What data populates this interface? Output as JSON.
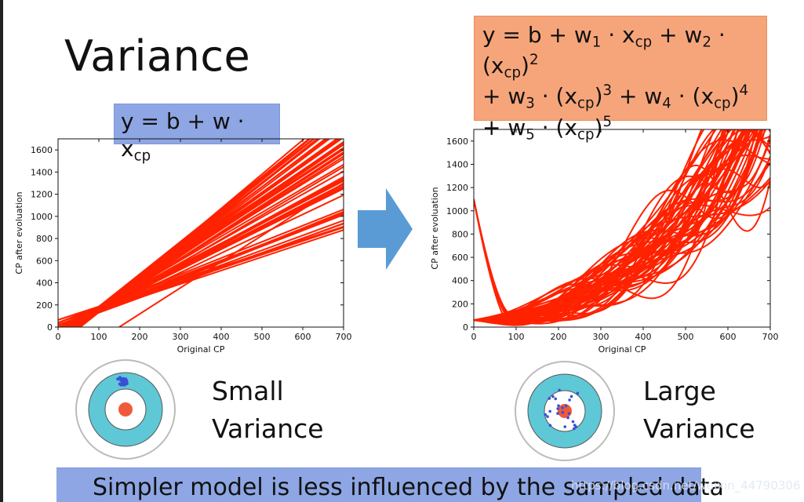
{
  "slide": {
    "title": "Variance",
    "bottom_text": "Simpler model is less influenced by the sampled data",
    "watermark": "https://blog.csdn.net/weixin_44790306"
  },
  "formula_simple": {
    "main": "y = b + w · x",
    "sub": "cp"
  },
  "formula_complex": {
    "line1_a": "y = b + w",
    "line1_sub1": "1",
    "line1_b": " · x",
    "line1_sub2": "cp",
    "line1_c": " + w",
    "line1_sub3": "2",
    "line1_d": " · (x",
    "line1_sub4": "cp",
    "line1_e": ")",
    "line1_sup": "2",
    "line2_a": "+ w",
    "line2_sub1": "3",
    "line2_b": " · (x",
    "line2_sub2": "cp",
    "line2_c": ")",
    "line2_sup1": "3",
    "line2_d": " + w",
    "line2_sub3": "4",
    "line2_e": " · (x",
    "line2_sub4": "cp",
    "line2_f": ")",
    "line2_sup2": "4",
    "line3_a": "+ w",
    "line3_sub1": "5",
    "line3_b": " · (x",
    "line3_sub2": "cp",
    "line3_c": ")",
    "line3_sup": "5"
  },
  "labels": {
    "small": "Small",
    "large": "Large",
    "variance": "Variance"
  },
  "colors": {
    "curve": "#ff2200",
    "blue_box": "#8ea6e3",
    "orange_box": "#f6a57a",
    "arrow": "#5b9bd5",
    "target_ring": "#5ec8d6",
    "target_center": "#f05a3a",
    "target_dot": "#3a4fd6"
  },
  "chart_data": [
    {
      "type": "line",
      "xlabel": "Original CP",
      "ylabel": "CP after evoluation",
      "xlim": [
        0,
        700
      ],
      "ylim": [
        0,
        1700
      ],
      "xticks": [
        0,
        100,
        200,
        300,
        400,
        500,
        600,
        700
      ],
      "yticks": [
        0,
        200,
        400,
        600,
        800,
        1000,
        1200,
        1400,
        1600
      ],
      "description_series": "many linear fits, slopes roughly 1.2 to 3.0, passing near (100,150)",
      "series_count": 60
    },
    {
      "type": "line",
      "xlabel": "Original CP",
      "ylabel": "CP after evoluation",
      "xlim": [
        0,
        700
      ],
      "ylim": [
        0,
        1700
      ],
      "xticks": [
        0,
        100,
        200,
        300,
        400,
        500,
        600,
        700
      ],
      "yticks": [
        0,
        200,
        400,
        600,
        800,
        1000,
        1200,
        1400,
        1600
      ],
      "description_series": "many fifth-degree polynomial fits with high variance",
      "series_count": 60
    }
  ]
}
